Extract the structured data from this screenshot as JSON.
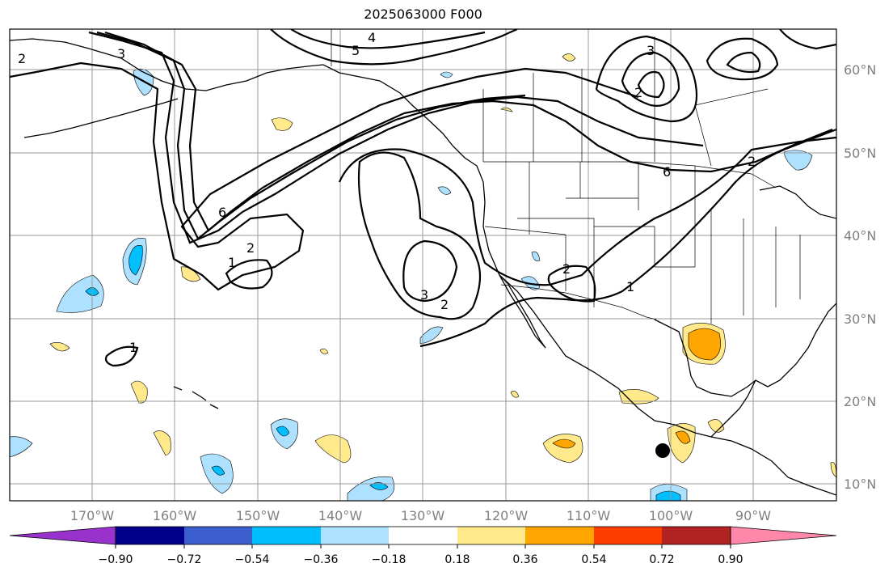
{
  "title": "2025063000 F000",
  "map": {
    "lat_labels": [
      "60°N",
      "50°N",
      "40°N",
      "30°N",
      "20°N",
      "10°N"
    ],
    "lon_labels": [
      "170°W",
      "160°W",
      "150°W",
      "140°W",
      "130°W",
      "120°W",
      "110°W",
      "100°W",
      "90°W"
    ],
    "contour_labels": [
      "1",
      "2",
      "3",
      "4",
      "5",
      "6"
    ]
  },
  "colorbar": {
    "labels": [
      "−0.90",
      "−0.72",
      "−0.54",
      "−0.36",
      "−0.18",
      "0.18",
      "0.36",
      "0.54",
      "0.72",
      "0.90"
    ],
    "colors": [
      "#9932cc",
      "#00008b",
      "#3a5fcd",
      "#00bfff",
      "#aee0ff",
      "#ffffff",
      "#ffe98a",
      "#ffa500",
      "#ff3c00",
      "#b22222",
      "#ff88aa"
    ]
  }
}
